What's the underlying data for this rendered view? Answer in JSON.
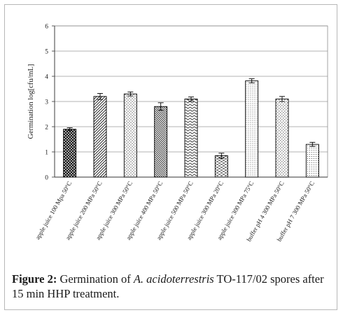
{
  "chart_data": {
    "type": "bar",
    "ylabel": "Germination  log[cfu/mL]",
    "ylim": [
      0,
      6
    ],
    "yticks": [
      0,
      1,
      2,
      3,
      4,
      5,
      6
    ],
    "grid": true,
    "legend": "none",
    "bar_color": "#000000",
    "categories": [
      "apple juice 100 Mpa 50°C",
      "apple juice 200 MPa 50°C",
      "apple juice 300 MPa 50°C",
      "apple juice 400 MPa 50°C",
      "apple juice 500 MPa 50°C",
      "apple juice 300 MPa 20°C",
      "apple juice 300 MPa 75°C",
      "buffer pH 4 300 MPa 50°C",
      "buffer pH 7 300 MPa 50°C"
    ],
    "values": [
      1.9,
      3.2,
      3.3,
      2.8,
      3.1,
      0.85,
      3.82,
      3.1,
      1.3
    ],
    "errors": [
      0.06,
      0.12,
      0.08,
      0.15,
      0.08,
      0.1,
      0.08,
      0.1,
      0.08
    ],
    "patterns": [
      "crosshatch",
      "diagonal",
      "dots-sparse",
      "diagonal-dense",
      "wave",
      "dash",
      "dots-fine",
      "dots-diag",
      "dots-grid"
    ]
  },
  "caption": {
    "label": "Figure 2:",
    "text_before": " Germination of ",
    "species": "A. acidoterrestris",
    "text_after": " TO-117/02 spores after 15 min HHP treatment."
  }
}
